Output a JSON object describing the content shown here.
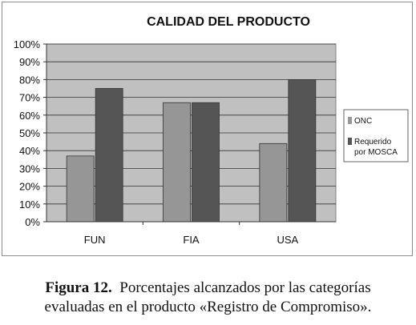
{
  "chart_data": {
    "type": "bar",
    "title": "CALIDAD DEL PRODUCTO",
    "categories": [
      "FUN",
      "FIA",
      "USA"
    ],
    "series": [
      {
        "name": "ONC",
        "values": [
          37,
          67,
          44
        ]
      },
      {
        "name": "Requerido por MOSCA",
        "values": [
          75,
          67,
          80
        ]
      }
    ],
    "ylim": [
      0,
      100
    ],
    "yticks": [
      "0%",
      "10%",
      "20%",
      "30%",
      "40%",
      "50%",
      "60%",
      "70%",
      "80%",
      "90%",
      "100%"
    ],
    "grid": true,
    "legend_position": "right",
    "colors": {
      "plot_bg": "#c0c0c0",
      "series_1": "#969696",
      "series_2": "#555555"
    }
  },
  "caption": {
    "label": "Figura 12.",
    "text_line1": "Porcentajes alcanzados por las categorías",
    "text_line2": "evaluadas en el producto «Registro de Compromiso»."
  }
}
